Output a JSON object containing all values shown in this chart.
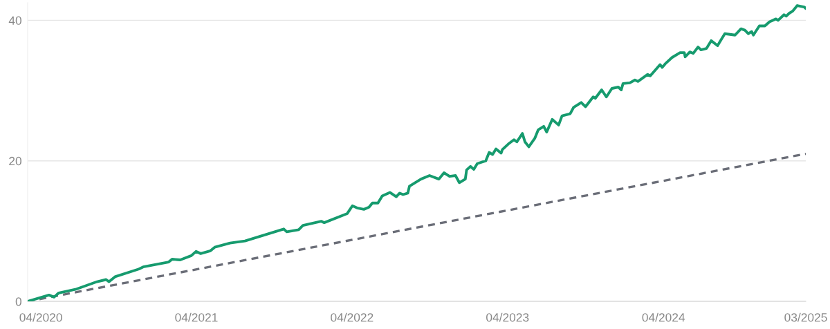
{
  "chart_data": {
    "type": "line",
    "xlim": [
      "2020-03-01",
      "2025-03-01"
    ],
    "xticks": [
      {
        "value": "2020-04-01",
        "label": "04/2020"
      },
      {
        "value": "2021-04-01",
        "label": "04/2021"
      },
      {
        "value": "2022-04-01",
        "label": "04/2022"
      },
      {
        "value": "2023-04-01",
        "label": "04/2023"
      },
      {
        "value": "2024-04-01",
        "label": "04/2024"
      },
      {
        "value": "2025-03-01",
        "label": "03/2025"
      }
    ],
    "ylim": [
      0,
      42.5
    ],
    "yticks": [
      0,
      20,
      40
    ],
    "grid": "y",
    "marker": "none",
    "series": [
      {
        "color": "#169b6e",
        "line_style": "solid",
        "x": [
          "2020-03-01",
          "2020-04-20",
          "2020-05-02",
          "2020-05-13",
          "2020-06-21",
          "2020-08-11",
          "2020-09-01",
          "2020-09-08",
          "2020-09-22",
          "2020-11-17",
          "2020-11-27",
          "2021-01-26",
          "2021-02-03",
          "2021-02-22",
          "2021-03-20",
          "2021-03-31",
          "2021-04-11",
          "2021-05-04",
          "2021-05-14",
          "2021-06-19",
          "2021-07-24",
          "2021-10-23",
          "2021-10-30",
          "2021-11-27",
          "2021-12-07",
          "2022-01-19",
          "2022-01-26",
          "2022-03-21",
          "2022-04-02",
          "2022-04-13",
          "2022-04-29",
          "2022-05-11",
          "2022-05-19",
          "2022-06-01",
          "2022-06-11",
          "2022-06-29",
          "2022-07-14",
          "2022-07-22",
          "2022-07-30",
          "2022-08-10",
          "2022-08-14",
          "2022-09-10",
          "2022-09-30",
          "2022-10-22",
          "2022-11-03",
          "2022-11-16",
          "2022-11-30",
          "2022-12-09",
          "2022-12-23",
          "2022-12-26",
          "2023-01-04",
          "2023-01-12",
          "2023-01-20",
          "2023-02-09",
          "2023-02-17",
          "2023-02-25",
          "2023-03-05",
          "2023-03-17",
          "2023-03-20",
          "2023-04-03",
          "2023-04-16",
          "2023-04-23",
          "2023-05-06",
          "2023-05-12",
          "2023-05-21",
          "2023-06-04",
          "2023-06-12",
          "2023-06-25",
          "2023-07-02",
          "2023-07-15",
          "2023-07-30",
          "2023-08-07",
          "2023-08-26",
          "2023-09-03",
          "2023-09-21",
          "2023-10-01",
          "2023-10-19",
          "2023-10-24",
          "2023-11-08",
          "2023-11-19",
          "2023-12-02",
          "2023-12-17",
          "2023-12-24",
          "2023-12-28",
          "2024-01-13",
          "2024-01-25",
          "2024-02-01",
          "2024-02-24",
          "2024-03-01",
          "2024-03-24",
          "2024-03-29",
          "2024-04-05",
          "2024-04-21",
          "2024-05-10",
          "2024-05-20",
          "2024-05-22",
          "2024-06-02",
          "2024-06-10",
          "2024-06-21",
          "2024-06-28",
          "2024-07-11",
          "2024-07-22",
          "2024-08-06",
          "2024-08-16",
          "2024-08-23",
          "2024-09-16",
          "2024-09-30",
          "2024-10-09",
          "2024-10-17",
          "2024-10-25",
          "2024-10-29",
          "2024-11-12",
          "2024-11-25",
          "2024-12-06",
          "2024-12-21",
          "2024-12-26",
          "2025-01-09",
          "2025-01-14",
          "2025-01-21",
          "2025-01-29",
          "2025-02-09",
          "2025-02-17",
          "2025-02-25",
          "2025-03-01"
        ],
        "values": [
          0,
          0.9,
          0.6,
          1.2,
          1.7,
          2.8,
          3.1,
          2.8,
          3.5,
          4.6,
          4.9,
          5.6,
          6.0,
          5.9,
          6.5,
          7.1,
          6.8,
          7.2,
          7.7,
          8.3,
          8.6,
          10.3,
          9.9,
          10.2,
          10.8,
          11.4,
          11.2,
          12.5,
          13.6,
          13.3,
          13.1,
          13.4,
          14.0,
          14.0,
          15.0,
          15.5,
          14.9,
          15.4,
          15.2,
          15.4,
          16.4,
          17.4,
          17.9,
          17.4,
          18.3,
          17.8,
          17.9,
          16.9,
          17.4,
          18.7,
          19.2,
          18.8,
          19.6,
          20.0,
          21.2,
          20.9,
          21.7,
          21.1,
          21.6,
          22.4,
          23.0,
          22.7,
          23.9,
          22.7,
          22.0,
          23.2,
          24.4,
          24.9,
          24.1,
          25.9,
          25.1,
          26.4,
          26.7,
          27.6,
          28.3,
          27.7,
          29.1,
          28.9,
          30.1,
          29.1,
          30.3,
          30.5,
          30.1,
          31.0,
          31.1,
          31.5,
          31.3,
          32.3,
          32.1,
          33.7,
          33.3,
          33.8,
          34.7,
          35.4,
          35.4,
          34.8,
          35.5,
          35.3,
          36.2,
          35.8,
          36.0,
          37.1,
          36.4,
          37.4,
          38.1,
          37.9,
          38.8,
          38.6,
          38.1,
          38.4,
          37.9,
          39.2,
          39.2,
          39.8,
          40.2,
          40.0,
          40.8,
          40.6,
          41.0,
          41.3,
          42.1,
          42.0,
          41.9,
          41.7
        ]
      },
      {
        "color": "#6b6e78",
        "line_style": "dashed",
        "x": [
          "2020-03-01",
          "2025-03-01"
        ],
        "values": [
          0,
          21
        ]
      }
    ]
  }
}
